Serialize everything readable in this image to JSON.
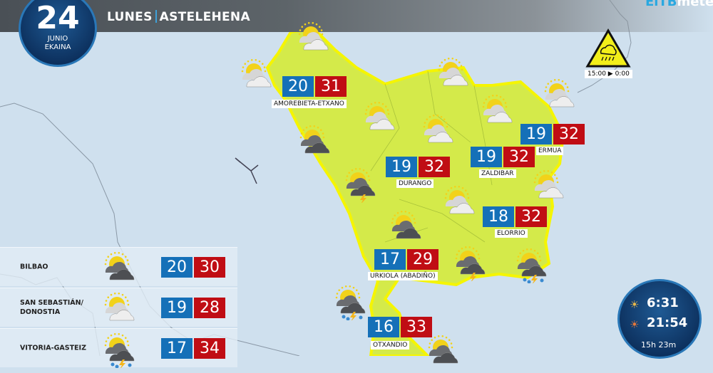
{
  "header": {
    "day_number": "24",
    "month_es": "JUNIO",
    "month_eu": "EKAINA",
    "weekday_es": "LUNES",
    "weekday_eu": "ASTELEHENA",
    "logo_a": "EiTB",
    "logo_b": "meteo"
  },
  "warning": {
    "icon": "rain-warning-triangle-icon",
    "time": "15:00 ▶ 0:00"
  },
  "colors": {
    "min": "#1570b8",
    "max": "#c00d14",
    "region": "#d4ea4a",
    "border": "#f5f500"
  },
  "localities": [
    {
      "name": "AMOREBIETA-ETXANO",
      "min": "20",
      "max": "31"
    },
    {
      "name": "DURANGO",
      "min": "19",
      "max": "32"
    },
    {
      "name": "ZALDIBAR",
      "min": "19",
      "max": "32"
    },
    {
      "name": "ERMUA",
      "min": "19",
      "max": "32"
    },
    {
      "name": "ELORRIO",
      "min": "18",
      "max": "32"
    },
    {
      "name": "URKIOLA (ABADIÑO)",
      "min": "17",
      "max": "29"
    },
    {
      "name": "OTXANDIO",
      "min": "16",
      "max": "33"
    }
  ],
  "capitals": [
    {
      "name": "BILBAO",
      "icon": "cloudy-sun-icon",
      "min": "20",
      "max": "30"
    },
    {
      "name": "SAN SEBASTIÁN/ DONOSTIA",
      "icon": "partly-cloudy-icon",
      "min": "19",
      "max": "28"
    },
    {
      "name": "VITORIA-GASTEIZ",
      "icon": "storm-rain-sun-icon",
      "min": "17",
      "max": "34"
    }
  ],
  "sun": {
    "sunrise": "6:31",
    "sunset": "21:54",
    "daylight": "15h 23m"
  }
}
